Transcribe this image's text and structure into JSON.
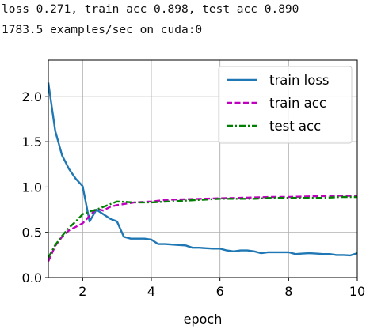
{
  "log": {
    "line1": "loss 0.271, train acc 0.898, test acc 0.890",
    "line2": "1783.5 examples/sec on cuda:0"
  },
  "chart_data": {
    "type": "line",
    "title": "",
    "xlabel": "epoch",
    "ylabel": "",
    "xlim": [
      1,
      10
    ],
    "ylim": [
      0,
      2.4
    ],
    "xticks": [
      2,
      4,
      6,
      8,
      10
    ],
    "yticks": [
      0.0,
      0.5,
      1.0,
      1.5,
      2.0
    ],
    "xtick_labels": [
      "2",
      "4",
      "6",
      "8",
      "10"
    ],
    "ytick_labels": [
      "0.0",
      "0.5",
      "1.0",
      "1.5",
      "2.0"
    ],
    "grid": true,
    "legend_position": "top-right",
    "series": [
      {
        "name": "train loss",
        "color": "#1f77b4",
        "style": "solid",
        "x": [
          1.0,
          1.2,
          1.4,
          1.6,
          1.8,
          2.0,
          2.2,
          2.4,
          2.6,
          2.8,
          3.0,
          3.2,
          3.4,
          3.6,
          3.8,
          4.0,
          4.2,
          4.4,
          4.6,
          4.8,
          5.0,
          5.2,
          5.4,
          5.6,
          5.8,
          6.0,
          6.2,
          6.4,
          6.6,
          6.8,
          7.0,
          7.2,
          7.4,
          7.6,
          7.8,
          8.0,
          8.2,
          8.4,
          8.6,
          8.8,
          9.0,
          9.2,
          9.4,
          9.6,
          9.8,
          10.0
        ],
        "y": [
          2.15,
          1.62,
          1.35,
          1.2,
          1.09,
          1.01,
          0.62,
          0.75,
          0.7,
          0.65,
          0.62,
          0.45,
          0.43,
          0.43,
          0.43,
          0.42,
          0.37,
          0.37,
          0.365,
          0.36,
          0.355,
          0.33,
          0.33,
          0.325,
          0.32,
          0.32,
          0.3,
          0.29,
          0.3,
          0.3,
          0.29,
          0.27,
          0.28,
          0.28,
          0.28,
          0.28,
          0.26,
          0.265,
          0.27,
          0.265,
          0.26,
          0.26,
          0.25,
          0.25,
          0.245,
          0.27
        ]
      },
      {
        "name": "train acc",
        "color": "#bf00bf",
        "style": "dashed",
        "x": [
          1.0,
          1.2,
          1.4,
          1.6,
          1.8,
          2.0,
          2.2,
          2.4,
          2.6,
          2.8,
          3.0,
          3.5,
          4.0,
          4.5,
          5.0,
          5.5,
          6.0,
          6.5,
          7.0,
          7.5,
          8.0,
          8.5,
          9.0,
          9.5,
          10.0
        ],
        "y": [
          0.18,
          0.35,
          0.45,
          0.52,
          0.56,
          0.6,
          0.68,
          0.76,
          0.74,
          0.78,
          0.8,
          0.83,
          0.84,
          0.86,
          0.865,
          0.87,
          0.875,
          0.88,
          0.885,
          0.89,
          0.89,
          0.895,
          0.9,
          0.905,
          0.9
        ]
      },
      {
        "name": "test acc",
        "color": "#008000",
        "style": "dashdot",
        "x": [
          1.0,
          1.2,
          1.4,
          1.6,
          1.8,
          2.0,
          2.2,
          2.4,
          2.6,
          2.8,
          3.0,
          3.5,
          4.0,
          4.5,
          5.0,
          5.5,
          6.0,
          6.5,
          7.0,
          7.5,
          8.0,
          8.5,
          9.0,
          9.5,
          10.0
        ],
        "y": [
          0.22,
          0.36,
          0.46,
          0.55,
          0.62,
          0.7,
          0.73,
          0.75,
          0.78,
          0.81,
          0.84,
          0.83,
          0.83,
          0.84,
          0.85,
          0.86,
          0.87,
          0.87,
          0.87,
          0.88,
          0.88,
          0.88,
          0.88,
          0.89,
          0.89
        ]
      }
    ]
  }
}
